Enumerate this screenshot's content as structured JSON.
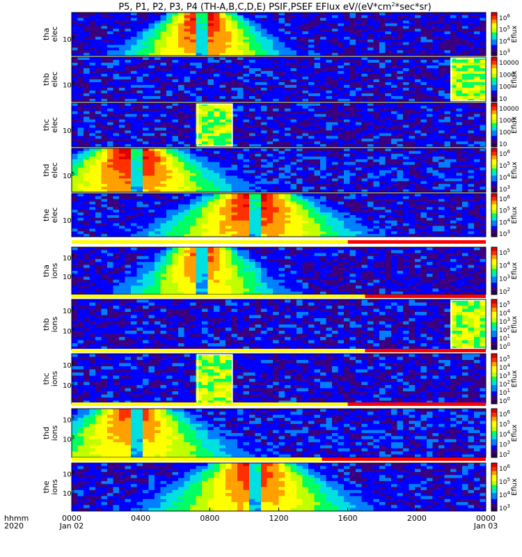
{
  "chart_data": {
    "type": "heatmap",
    "title": "P5, P1, P2, P3, P4 (TH-A,B,C,D,E) PSIF,PSEF EFlux eV/(eV*cm",
    "title_sup": "2",
    "title_end": "*sec*sr)",
    "colorbar_label": "Eflux",
    "grid": false,
    "x_axis": {
      "label_top": "hhmm",
      "label_bottom": "2020",
      "range_hours": [
        0,
        24
      ],
      "ticks": [
        {
          "hour": 0,
          "label": "0000",
          "sub": "Jan 02"
        },
        {
          "hour": 4,
          "label": "0400",
          "sub": ""
        },
        {
          "hour": 8,
          "label": "0800",
          "sub": ""
        },
        {
          "hour": 12,
          "label": "1200",
          "sub": ""
        },
        {
          "hour": 16,
          "label": "1600",
          "sub": ""
        },
        {
          "hour": 20,
          "label": "2000",
          "sub": ""
        },
        {
          "hour": 24,
          "label": "0000",
          "sub": "Jan 03"
        }
      ]
    },
    "panels": [
      {
        "probe": "tha",
        "species": "elec",
        "y_tick": "10",
        "y_exp": "3",
        "cbar_labels": [
          {
            "m": "10",
            "e": "6"
          },
          {
            "m": "10",
            "e": "5"
          },
          {
            "m": "10",
            "e": "4"
          },
          {
            "m": "10",
            "e": "3"
          }
        ],
        "data_window_hours": [
          0,
          24
        ],
        "peak_hours": [
          6.0,
          9.0
        ],
        "peak_center_hours": 7.6,
        "gap_hours": 7.5,
        "bg_level": 0.05,
        "strength": 1.0
      },
      {
        "probe": "thb",
        "species": "elec",
        "y_tick": "10",
        "y_exp": "5",
        "cbar_labels": [
          {
            "m": "10000",
            "e": ""
          },
          {
            "m": "1000",
            "e": ""
          },
          {
            "m": "100",
            "e": ""
          },
          {
            "m": "10",
            "e": ""
          }
        ],
        "data_window_hours": [
          0,
          24
        ],
        "peak_hours": [],
        "block_hours": [
          22.0,
          24.0
        ],
        "bg_level": 0.06,
        "strength": 0.4
      },
      {
        "probe": "thc",
        "species": "elec",
        "y_tick": "10",
        "y_exp": "5",
        "cbar_labels": [
          {
            "m": "10000",
            "e": ""
          },
          {
            "m": "1000",
            "e": ""
          },
          {
            "m": "100",
            "e": ""
          },
          {
            "m": "10",
            "e": ""
          }
        ],
        "data_window_hours": [
          0,
          24
        ],
        "peak_hours": [],
        "block_hours": [
          7.3,
          9.3
        ],
        "bg_level": 0.06,
        "strength": 0.4
      },
      {
        "probe": "thd",
        "species": "elec",
        "y_tick": "10",
        "y_exp": "5",
        "cbar_labels": [
          {
            "m": "10",
            "e": "6"
          },
          {
            "m": "10",
            "e": "5"
          },
          {
            "m": "10",
            "e": "4"
          },
          {
            "m": "10",
            "e": "3"
          }
        ],
        "data_window_hours": [
          0,
          24
        ],
        "peak_hours": [
          1.5,
          5.5
        ],
        "peak_center_hours": 3.6,
        "gap_hours": 3.7,
        "bg_level": 0.08,
        "strength": 1.0
      },
      {
        "probe": "the",
        "species": "elec",
        "y_tick": "10",
        "y_exp": "3",
        "cbar_labels": [
          {
            "m": "10",
            "e": "6"
          },
          {
            "m": "10",
            "e": "5"
          },
          {
            "m": "10",
            "e": "4"
          },
          {
            "m": "10",
            "e": "3"
          }
        ],
        "data_window_hours": [
          0,
          24
        ],
        "peak_hours": [
          8.5,
          12.5
        ],
        "peak_center_hours": 10.6,
        "gap_hours": 10.6,
        "bg_level": 0.06,
        "strength": 1.0
      },
      {
        "probe": "tha",
        "species": "ions",
        "y_tick": "10",
        "y_exp": "3",
        "y_tick2": "10",
        "y_exp2": "5",
        "cbar_labels": [
          {
            "m": "10",
            "e": "5"
          },
          {
            "m": "10",
            "e": "4"
          },
          {
            "m": "10",
            "e": "3"
          },
          {
            "m": "10",
            "e": "2"
          }
        ],
        "data_window_hours": [
          0,
          24
        ],
        "peak_hours": [
          6.0,
          9.0
        ],
        "peak_center_hours": 7.6,
        "gap_hours": 7.5,
        "bg_level": 0.05,
        "strength": 0.9
      },
      {
        "probe": "thb",
        "species": "ions",
        "y_tick": "10",
        "y_exp": "3",
        "y_tick2": "10",
        "y_exp2": "5",
        "cbar_labels": [
          {
            "m": "10",
            "e": "5"
          },
          {
            "m": "10",
            "e": "4"
          },
          {
            "m": "10",
            "e": "3"
          },
          {
            "m": "10",
            "e": "2"
          },
          {
            "m": "10",
            "e": "1"
          },
          {
            "m": "10",
            "e": "0"
          }
        ],
        "data_window_hours": [
          0,
          24
        ],
        "peak_hours": [],
        "block_hours": [
          22.0,
          24.0
        ],
        "bg_level": 0.06,
        "strength": 0.4
      },
      {
        "probe": "thc",
        "species": "ions",
        "y_tick": "10",
        "y_exp": "3",
        "y_tick2": "10",
        "y_exp2": "5",
        "cbar_labels": [
          {
            "m": "10",
            "e": "5"
          },
          {
            "m": "10",
            "e": "4"
          },
          {
            "m": "10",
            "e": "3"
          },
          {
            "m": "10",
            "e": "2"
          },
          {
            "m": "10",
            "e": "1"
          },
          {
            "m": "10",
            "e": "0"
          }
        ],
        "data_window_hours": [
          0,
          24
        ],
        "peak_hours": [],
        "block_hours": [
          7.3,
          9.3
        ],
        "bg_level": 0.06,
        "strength": 0.4
      },
      {
        "probe": "thd",
        "species": "ions",
        "y_tick": "10",
        "y_exp": "3",
        "y_tick2": "10",
        "y_exp2": "5",
        "cbar_labels": [
          {
            "m": "10",
            "e": "6"
          },
          {
            "m": "10",
            "e": "5"
          },
          {
            "m": "10",
            "e": "4"
          },
          {
            "m": "10",
            "e": "3"
          },
          {
            "m": "10",
            "e": "2"
          }
        ],
        "data_window_hours": [
          0,
          24
        ],
        "peak_hours": [
          1.5,
          5.5
        ],
        "peak_center_hours": 3.6,
        "gap_hours": 3.7,
        "bg_level": 0.08,
        "strength": 0.9
      },
      {
        "probe": "the",
        "species": "ions",
        "y_tick": "10",
        "y_exp": "3",
        "y_tick2": "10",
        "y_exp2": "6",
        "cbar_labels": [
          {
            "m": "10",
            "e": "6"
          },
          {
            "m": "10",
            "e": "5"
          },
          {
            "m": "10",
            "e": "4"
          },
          {
            "m": "10",
            "e": "3"
          }
        ],
        "data_window_hours": [
          0,
          24
        ],
        "peak_hours": [
          8.5,
          12.5
        ],
        "peak_center_hours": 10.6,
        "gap_hours": 10.6,
        "bg_level": 0.06,
        "strength": 0.95
      }
    ],
    "mode_bars": [
      {
        "after_panel": 4,
        "yellow_hours": [
          0,
          16.0
        ],
        "red_hours": [
          16.0,
          24
        ]
      },
      {
        "after_panel": 5,
        "yellow_hours": [
          0,
          17.0
        ],
        "red_hours": [
          17.0,
          24
        ]
      },
      {
        "after_panel": 6,
        "yellow_hours": [
          0,
          17.0
        ],
        "red_hours": [
          17.0,
          24
        ]
      },
      {
        "after_panel": 7,
        "yellow_hours": [
          0,
          16.0
        ],
        "red_hours": [
          16.0,
          24
        ]
      },
      {
        "after_panel": 8,
        "yellow_hours": [
          0,
          14.5
        ],
        "red_hours": [
          14.5,
          24
        ]
      }
    ],
    "colors": {
      "mode_yellow": "#ffff00",
      "mode_red": "#ff0000",
      "colormap": [
        "#2a0050",
        "#3b0080",
        "#0000ff",
        "#0080ff",
        "#00e0e0",
        "#00ff60",
        "#c0ff00",
        "#ffff00",
        "#ffa000",
        "#ff3000",
        "#e00000"
      ]
    }
  }
}
